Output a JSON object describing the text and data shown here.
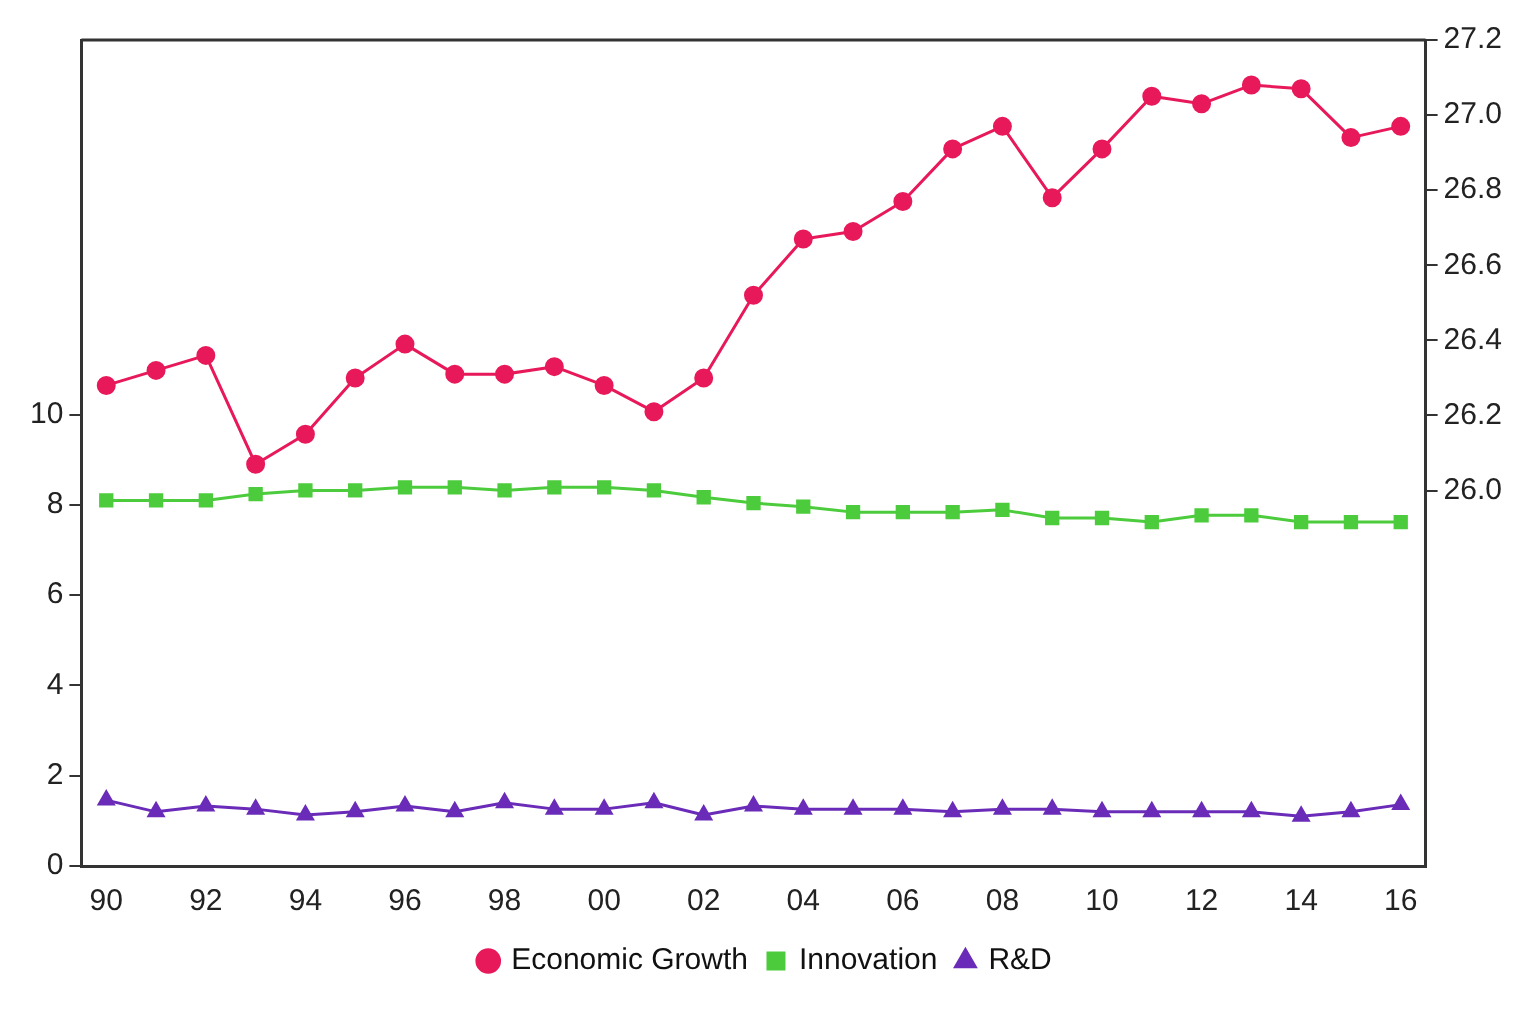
{
  "chart_data": {
    "type": "line",
    "categories": [
      "90",
      null,
      "92",
      null,
      "94",
      null,
      "96",
      null,
      "98",
      null,
      "00",
      null,
      "02",
      null,
      "04",
      null,
      "06",
      null,
      "08",
      null,
      "10",
      null,
      "12",
      null,
      "14",
      null,
      "16"
    ],
    "series": [
      {
        "name": "Economic Growth",
        "color": "#e8195a",
        "marker": "circle",
        "axis": "y2",
        "values": [
          26.28,
          26.32,
          26.36,
          26.07,
          26.15,
          26.3,
          26.39,
          26.31,
          26.31,
          26.33,
          26.28,
          26.21,
          26.3,
          26.52,
          26.67,
          26.69,
          26.77,
          26.91,
          26.97,
          26.78,
          26.91,
          27.05,
          27.03,
          27.08,
          27.07,
          26.94,
          26.97
        ]
      },
      {
        "name": "Innovation",
        "color": "#4ccc3c",
        "marker": "square",
        "values": [
          8.1,
          8.1,
          8.1,
          8.24,
          8.32,
          8.32,
          8.39,
          8.39,
          8.32,
          8.39,
          8.39,
          8.32,
          8.17,
          8.04,
          7.96,
          7.84,
          7.84,
          7.84,
          7.89,
          7.71,
          7.71,
          7.62,
          7.77,
          7.77,
          7.62,
          7.62,
          7.62
        ]
      },
      {
        "name": "R&D",
        "color": "#6a2cb8",
        "marker": "triangle",
        "values": [
          1.46,
          1.2,
          1.33,
          1.26,
          1.13,
          1.2,
          1.33,
          1.2,
          1.4,
          1.26,
          1.26,
          1.4,
          1.13,
          1.33,
          1.26,
          1.26,
          1.26,
          1.2,
          1.26,
          1.26,
          1.2,
          1.2,
          1.2,
          1.2,
          1.1,
          1.2,
          1.36
        ]
      }
    ],
    "ylim": [
      0,
      18.3
    ],
    "yticks": [
      0,
      2,
      4,
      6,
      8,
      10
    ],
    "y2lim": [
      25.0,
      27.2
    ],
    "y2ticks": [
      {
        "value": 26,
        "label": "26.0"
      },
      26.2,
      26.4,
      26.6,
      26.8,
      {
        "value": 27,
        "label": "27.0"
      },
      27.2
    ],
    "legend": "bottom",
    "line_style": "solid"
  }
}
